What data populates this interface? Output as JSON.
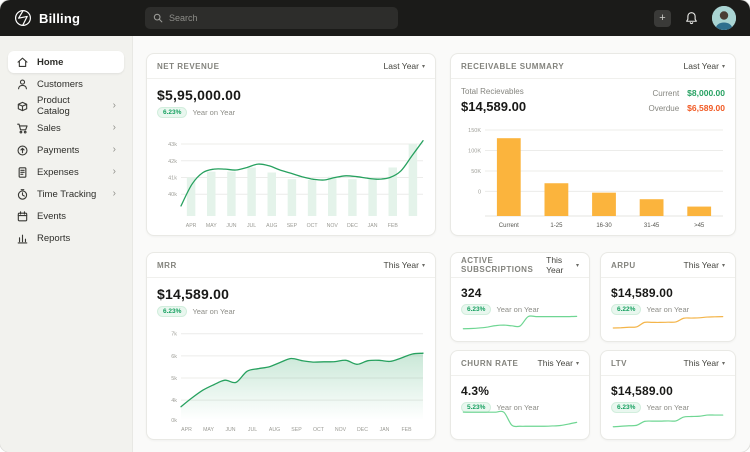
{
  "topbar": {
    "app_title": "Billing",
    "search_placeholder": "Search"
  },
  "sidebar": {
    "items": [
      {
        "label": "Home",
        "active": true,
        "has_submenu": false
      },
      {
        "label": "Customers",
        "active": false,
        "has_submenu": false
      },
      {
        "label": "Product Catalog",
        "active": false,
        "has_submenu": true
      },
      {
        "label": "Sales",
        "active": false,
        "has_submenu": true
      },
      {
        "label": "Payments",
        "active": false,
        "has_submenu": true
      },
      {
        "label": "Expenses",
        "active": false,
        "has_submenu": true
      },
      {
        "label": "Time Tracking",
        "active": false,
        "has_submenu": true
      },
      {
        "label": "Events",
        "active": false,
        "has_submenu": false
      },
      {
        "label": "Reports",
        "active": false,
        "has_submenu": false
      }
    ],
    "chevron_glyph": "›"
  },
  "cards": {
    "net_revenue": {
      "title": "NET REVENUE",
      "period": "Last Year",
      "value": "$5,95,000.00",
      "badge": "6.23%",
      "badge_caption": "Year on Year"
    },
    "receivable": {
      "title": "RECEIVABLE SUMMARY",
      "period": "Last Year",
      "total_label": "Total Recievables",
      "total_value": "$14,589.00",
      "current_label": "Current",
      "current_value": "$8,000.00",
      "overdue_label": "Overdue",
      "overdue_value": "$6,589.00"
    },
    "mrr": {
      "title": "MRR",
      "period": "This Year",
      "value": "$14,589.00",
      "badge": "6.23%",
      "badge_caption": "Year on Year"
    },
    "active_subscriptions": {
      "title": "ACTIVE SUBSCRIPTIONS",
      "period": "This Year",
      "value": "324",
      "badge": "6.23%",
      "badge_caption": "Year on Year"
    },
    "arpu": {
      "title": "ARPU",
      "period": "This Year",
      "value": "$14,589.00",
      "badge": "6.22%",
      "badge_caption": "Year on Year"
    },
    "churn": {
      "title": "CHURN RATE",
      "period": "This Year",
      "value": "4.3%",
      "badge": "5.23%",
      "badge_caption": "Year on Year"
    },
    "ltv": {
      "title": "LTV",
      "period": "This Year",
      "value": "$14,589.00",
      "badge": "6.23%",
      "badge_caption": "Year on Year"
    }
  },
  "colors": {
    "topbar_bg": "#1b1b19",
    "accent_green": "#17a161",
    "badge_bg": "#e9f7ef",
    "bar_orange": "#fbb43d",
    "overdue_red": "#f15a24",
    "line_green": "#27a15f",
    "spark_green": "#6fd693",
    "spark_orange": "#f4b54a"
  },
  "chart_data": [
    {
      "id": "net-revenue-chart",
      "type": "combo",
      "title": "Net Revenue by month",
      "categories": [
        "APR",
        "MAY",
        "JUN",
        "JUL",
        "AUG",
        "SEP",
        "OCT",
        "NOV",
        "DEC",
        "JAN",
        "FEB",
        ""
      ],
      "bar_values_k": [
        41.0,
        41.35,
        41.35,
        41.6,
        41.3,
        40.9,
        40.85,
        41.05,
        40.9,
        41.0,
        41.6,
        43.0
      ],
      "line_values_k": [
        39.3,
        40.6,
        41.3,
        41.5,
        41.5,
        41.45,
        41.6,
        41.8,
        41.7,
        41.45,
        41.25,
        41.05,
        40.9,
        40.85,
        41.0,
        41.1,
        41.05,
        40.95,
        40.9,
        41.0,
        41.4,
        42.3,
        43.2
      ],
      "yticks": [
        {
          "v": 43,
          "label": "43k"
        },
        {
          "v": 42,
          "label": "42k"
        },
        {
          "v": 41,
          "label": "41k"
        },
        {
          "v": 40,
          "label": "40k"
        }
      ],
      "ylim": [
        38.7,
        43.6
      ],
      "grid": true,
      "bar_color": "#e4f3ea",
      "line_color": "#27a15f"
    },
    {
      "id": "receivable-chart",
      "type": "bar",
      "title": "Receivables aging",
      "categories": [
        "Current",
        "1-25",
        "16-30",
        "31-45",
        ">45"
      ],
      "values": [
        130000,
        20000,
        -3000,
        -19000,
        -37000
      ],
      "yticks": [
        {
          "v": 150000,
          "label": "150K"
        },
        {
          "v": 100000,
          "label": "100K"
        },
        {
          "v": 50000,
          "label": "50K"
        },
        {
          "v": 0,
          "label": "0"
        }
      ],
      "ylim": [
        -60000,
        150000
      ],
      "grid": true,
      "bar_color": "#fbb43d"
    },
    {
      "id": "mrr-chart",
      "type": "area",
      "title": "MRR by month",
      "categories": [
        "APR",
        "MAY",
        "JUN",
        "JUL",
        "AUG",
        "SEP",
        "OCT",
        "NOV",
        "DEC",
        "JAN",
        "FEB"
      ],
      "line_values_k": [
        3.7,
        4.1,
        4.45,
        4.7,
        4.9,
        4.8,
        5.3,
        5.42,
        5.5,
        5.7,
        5.88,
        5.78,
        5.72,
        5.73,
        5.74,
        5.8,
        5.62,
        5.78,
        5.8,
        5.75,
        5.9,
        6.08,
        6.12
      ],
      "yticks": [
        {
          "v": 7,
          "label": "7k"
        },
        {
          "v": 6,
          "label": "6k"
        },
        {
          "v": 5,
          "label": "5k"
        },
        {
          "v": 4,
          "label": "4k"
        }
      ],
      "bottom_tick_label": "0k",
      "ylim": [
        3.1,
        7.35
      ],
      "grid": true,
      "line_color": "#27a15f"
    },
    {
      "id": "subs-spark",
      "type": "spark",
      "title": "Active Subscriptions trend",
      "values": [
        12,
        13,
        15,
        19,
        25,
        27,
        24,
        23,
        62,
        62,
        62,
        62,
        62,
        62,
        63
      ],
      "color": "#6fd693"
    },
    {
      "id": "arpu-spark",
      "type": "spark",
      "title": "ARPU trend",
      "values": [
        15,
        16,
        18,
        20,
        38,
        38,
        38,
        39,
        40,
        55,
        56,
        57,
        60,
        61,
        62
      ],
      "color": "#f4b54a"
    },
    {
      "id": "churn-spark",
      "type": "spark",
      "title": "Churn Rate trend",
      "values": [
        72,
        72,
        72,
        72,
        72,
        72,
        18,
        14,
        14,
        14,
        14,
        15,
        17,
        23,
        30
      ],
      "color": "#6fd693"
    },
    {
      "id": "ltv-spark",
      "type": "spark",
      "title": "LTV trend",
      "values": [
        12,
        14,
        16,
        18,
        34,
        35,
        35,
        36,
        36,
        52,
        54,
        55,
        60,
        60,
        60
      ],
      "color": "#6fd693"
    }
  ]
}
